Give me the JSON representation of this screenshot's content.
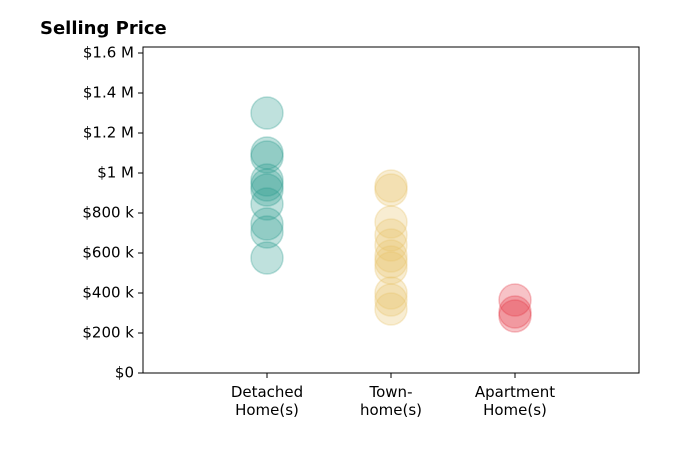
{
  "chart_data": {
    "type": "strip",
    "title": "Selling Price",
    "categories": [
      "Detached\nHome(s)",
      "Town-\nhome(s)",
      "Apartment\nHome(s)"
    ],
    "colors": [
      "#2a9d8f",
      "#e9c46a",
      "#e63946"
    ],
    "values": [
      [
        1300000,
        1100000,
        1080000,
        965000,
        940000,
        915000,
        845000,
        745000,
        705000,
        575000
      ],
      [
        935000,
        915000,
        755000,
        690000,
        640000,
        585000,
        555000,
        525000,
        400000,
        365000,
        320000
      ],
      [
        365000,
        305000,
        285000
      ]
    ],
    "xlim": [
      -1,
      3
    ],
    "ylim": [
      0,
      1630000
    ],
    "yticks": [
      {
        "value": 0,
        "label": "$0"
      },
      {
        "value": 200000,
        "label": "$200 k"
      },
      {
        "value": 400000,
        "label": "$400 k"
      },
      {
        "value": 600000,
        "label": "$600 k"
      },
      {
        "value": 800000,
        "label": "$800 k"
      },
      {
        "value": 1000000,
        "label": "$1 M"
      },
      {
        "value": 1200000,
        "label": "$1.2 M"
      },
      {
        "value": 1400000,
        "label": "$1.4 M"
      },
      {
        "value": 1600000,
        "label": "$1.6 M"
      }
    ],
    "grid": false
  }
}
